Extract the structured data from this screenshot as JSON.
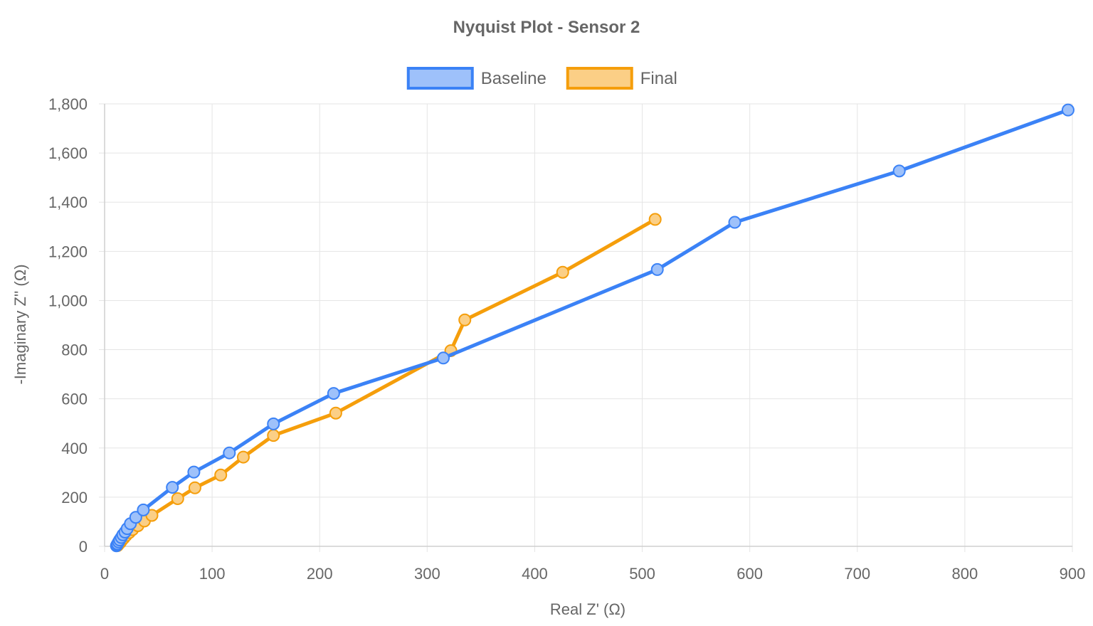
{
  "chart_data": {
    "type": "line",
    "title": "Nyquist Plot - Sensor 2",
    "xlabel": "Real Z' (Ω)",
    "ylabel": "-Imaginary Z'' (Ω)",
    "xlim": [
      0,
      900
    ],
    "ylim": [
      0,
      1800
    ],
    "xticks": [
      0,
      100,
      200,
      300,
      400,
      500,
      600,
      700,
      800,
      900
    ],
    "yticks": [
      0,
      200,
      400,
      600,
      800,
      1000,
      1200,
      1400,
      1600,
      1800
    ],
    "xtick_labels": [
      "0",
      "100",
      "200",
      "300",
      "400",
      "500",
      "600",
      "700",
      "800",
      "900"
    ],
    "ytick_labels": [
      "0",
      "200",
      "400",
      "600",
      "800",
      "1,000",
      "1,200",
      "1,400",
      "1,600",
      "1,800"
    ],
    "grid": true,
    "legend_position": "top-center",
    "series": [
      {
        "name": "Baseline",
        "color": "#3b82f6",
        "fill": "#9ec1fa",
        "points": [
          [
            11,
            2
          ],
          [
            11.5,
            6
          ],
          [
            12,
            10
          ],
          [
            13,
            18
          ],
          [
            14,
            26
          ],
          [
            15.5,
            36
          ],
          [
            17,
            47
          ],
          [
            19,
            58
          ],
          [
            21,
            72
          ],
          [
            24,
            92
          ],
          [
            29,
            118
          ],
          [
            36,
            148
          ],
          [
            63,
            240
          ],
          [
            83,
            302
          ],
          [
            116,
            380
          ],
          [
            157,
            498
          ],
          [
            213,
            622
          ],
          [
            315,
            766
          ],
          [
            514,
            1126
          ],
          [
            586,
            1318
          ],
          [
            739,
            1527
          ],
          [
            896,
            1775
          ]
        ]
      },
      {
        "name": "Final",
        "color": "#f59e0b",
        "fill": "#fbcf86",
        "points": [
          [
            12,
            3
          ],
          [
            13,
            8
          ],
          [
            14.5,
            15
          ],
          [
            16,
            24
          ],
          [
            18,
            34
          ],
          [
            20,
            44
          ],
          [
            23,
            56
          ],
          [
            26,
            68
          ],
          [
            31,
            84
          ],
          [
            37,
            103
          ],
          [
            44,
            126
          ],
          [
            68,
            194
          ],
          [
            84,
            238
          ],
          [
            108,
            290
          ],
          [
            129,
            363
          ],
          [
            157,
            451
          ],
          [
            215,
            542
          ],
          [
            322,
            796
          ],
          [
            335,
            921
          ],
          [
            426,
            1115
          ],
          [
            512,
            1330
          ]
        ]
      }
    ]
  }
}
